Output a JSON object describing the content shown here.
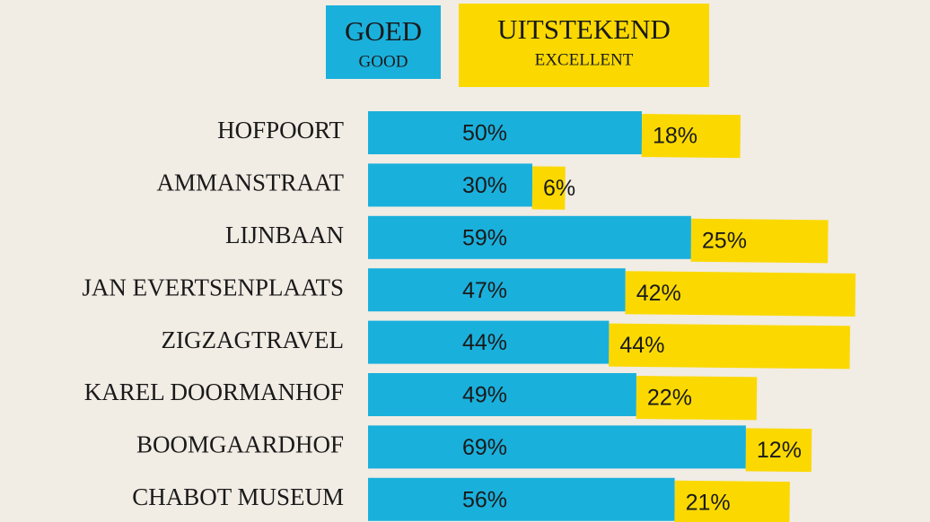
{
  "chart_data": {
    "type": "stacked-bar-horizontal",
    "categories": [
      "HOFPOORT",
      "AMMANSTRAAT",
      "LIJNBAAN",
      "JAN EVERTSENPLAATS",
      "ZIGZAGTRAVEL",
      "KAREL DOORMANHOF",
      "BOOMGAARDHOF",
      "CHABOT MUSEUM"
    ],
    "series": [
      {
        "name": "GOED",
        "subname": "GOOD",
        "color": "#1ab0dc",
        "values": [
          50,
          30,
          59,
          47,
          44,
          49,
          69,
          56
        ],
        "value_labels": [
          "50%",
          "30%",
          "59%",
          "47%",
          "44%",
          "49%",
          "69%",
          "56%"
        ]
      },
      {
        "name": "UITSTEKEND",
        "subname": "EXCELLENT",
        "color": "#fbd900",
        "values": [
          18,
          6,
          25,
          42,
          44,
          22,
          12,
          21
        ],
        "value_labels": [
          "18%",
          "6%",
          "25%",
          "42%",
          "44%",
          "22%",
          "12%",
          "21%"
        ]
      }
    ]
  }
}
